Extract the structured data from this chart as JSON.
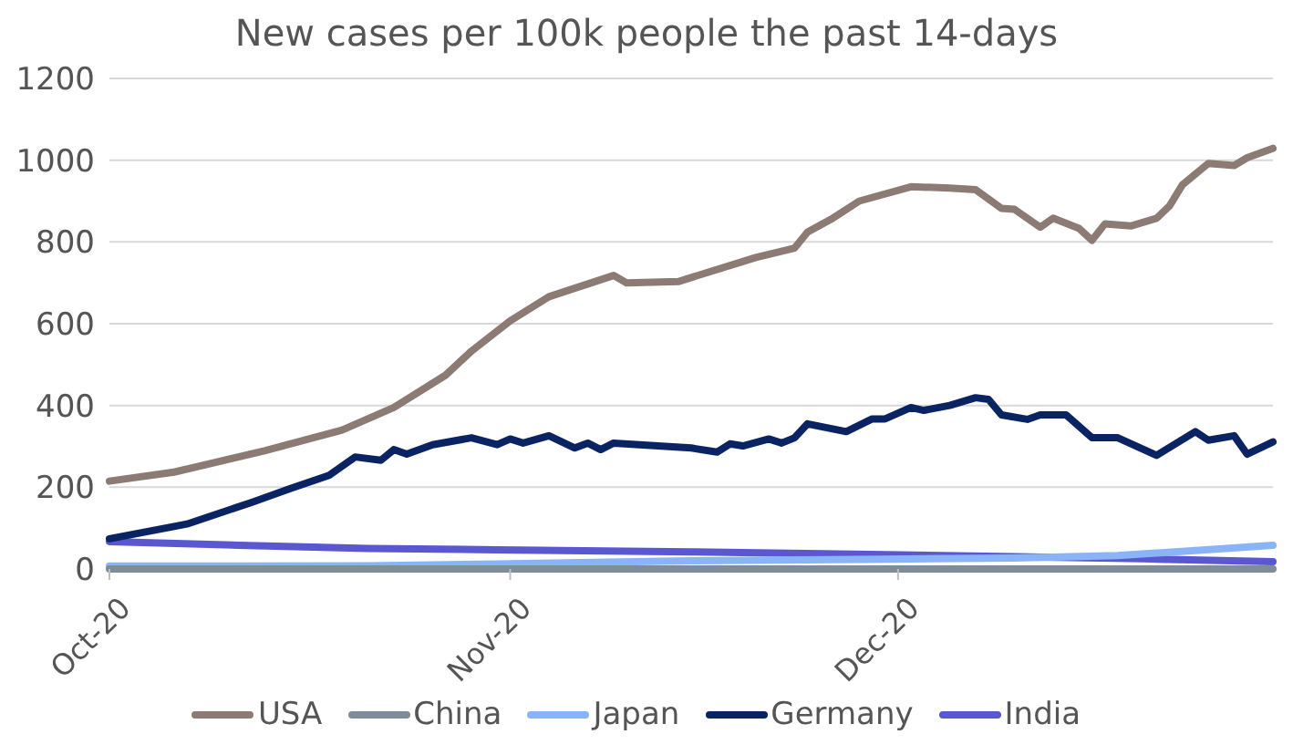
{
  "chart_data": {
    "type": "line",
    "title": "New cases per 100k people the past 14-days",
    "xlim": [
      "2020-10-01",
      "2020-12-30"
    ],
    "xticks": [
      {
        "value": "2020-10-01",
        "label": "Oct-20"
      },
      {
        "value": "2020-11-01",
        "label": "Nov-20"
      },
      {
        "value": "2020-12-01",
        "label": "Dec-20"
      }
    ],
    "ylim": [
      0,
      1200
    ],
    "yticks": [
      0,
      200,
      400,
      600,
      800,
      1000,
      1200
    ],
    "grid": "y",
    "legend": "bottom",
    "marker": "none",
    "line_style": "solid",
    "series": [
      {
        "name": "USA",
        "color": "#8c7b75",
        "x": [
          "2020-10-01",
          "2020-10-06",
          "2020-10-13",
          "2020-10-19",
          "2020-10-23",
          "2020-10-27",
          "2020-10-29",
          "2020-11-01",
          "2020-11-04",
          "2020-11-09",
          "2020-11-10",
          "2020-11-14",
          "2020-11-20",
          "2020-11-23",
          "2020-11-24",
          "2020-11-26",
          "2020-11-28",
          "2020-12-02",
          "2020-12-05",
          "2020-12-07",
          "2020-12-09",
          "2020-12-10",
          "2020-12-12",
          "2020-12-13",
          "2020-12-15",
          "2020-12-16",
          "2020-12-17",
          "2020-12-19",
          "2020-12-21",
          "2020-12-22",
          "2020-12-23",
          "2020-12-25",
          "2020-12-27",
          "2020-12-28",
          "2020-12-30"
        ],
        "values": [
          215,
          237,
          289,
          340,
          395,
          474,
          533,
          607,
          666,
          718,
          700,
          703,
          762,
          785,
          824,
          859,
          900,
          935,
          932,
          928,
          882,
          880,
          836,
          858,
          833,
          804,
          844,
          839,
          858,
          888,
          940,
          992,
          987,
          1006,
          1029
        ]
      },
      {
        "name": "China",
        "color": "#7f8c9a",
        "x": [
          "2020-10-01",
          "2020-10-11",
          "2020-10-21",
          "2020-10-31",
          "2020-11-10",
          "2020-11-20",
          "2020-11-30",
          "2020-12-10",
          "2020-12-20",
          "2020-12-30"
        ],
        "values": [
          0,
          0,
          0,
          0,
          0,
          0,
          0,
          0,
          0,
          0
        ]
      },
      {
        "name": "Japan",
        "color": "#8ab4f8",
        "x": [
          "2020-10-01",
          "2020-10-21",
          "2020-10-31",
          "2020-11-15",
          "2020-11-30",
          "2020-12-10",
          "2020-12-18",
          "2020-12-24",
          "2020-12-30"
        ],
        "values": [
          7,
          8,
          12,
          20,
          24,
          27,
          33,
          45,
          58
        ]
      },
      {
        "name": "Germany",
        "color": "#0a2463",
        "x": [
          "2020-10-01",
          "2020-10-06",
          "2020-10-07",
          "2020-10-12",
          "2020-10-15",
          "2020-10-18",
          "2020-10-20",
          "2020-10-22",
          "2020-10-23",
          "2020-10-24",
          "2020-10-26",
          "2020-10-29",
          "2020-10-31",
          "2020-11-01",
          "2020-11-02",
          "2020-11-04",
          "2020-11-06",
          "2020-11-07",
          "2020-11-08",
          "2020-11-09",
          "2020-11-15",
          "2020-11-17",
          "2020-11-18",
          "2020-11-19",
          "2020-11-21",
          "2020-11-22",
          "2020-11-23",
          "2020-11-24",
          "2020-11-27",
          "2020-11-29",
          "2020-11-30",
          "2020-12-02",
          "2020-12-03",
          "2020-12-05",
          "2020-12-07",
          "2020-12-08",
          "2020-12-09",
          "2020-12-11",
          "2020-12-12",
          "2020-12-14",
          "2020-12-16",
          "2020-12-18",
          "2020-12-21",
          "2020-12-24",
          "2020-12-25",
          "2020-12-27",
          "2020-12-28",
          "2020-12-30"
        ],
        "values": [
          74,
          104,
          110,
          163,
          197,
          229,
          274,
          266,
          292,
          281,
          304,
          321,
          304,
          318,
          308,
          326,
          296,
          308,
          292,
          308,
          296,
          286,
          306,
          301,
          318,
          308,
          321,
          355,
          336,
          367,
          367,
          395,
          388,
          400,
          419,
          415,
          377,
          366,
          377,
          377,
          321,
          321,
          278,
          336,
          315,
          326,
          281,
          311
        ]
      },
      {
        "name": "India",
        "color": "#5b57d1",
        "x": [
          "2020-10-01",
          "2020-10-11",
          "2020-10-21",
          "2020-10-31",
          "2020-11-15",
          "2020-11-30",
          "2020-12-10",
          "2020-12-20",
          "2020-12-30"
        ],
        "values": [
          67,
          58,
          50,
          47,
          42,
          35,
          30,
          25,
          18
        ]
      }
    ]
  }
}
